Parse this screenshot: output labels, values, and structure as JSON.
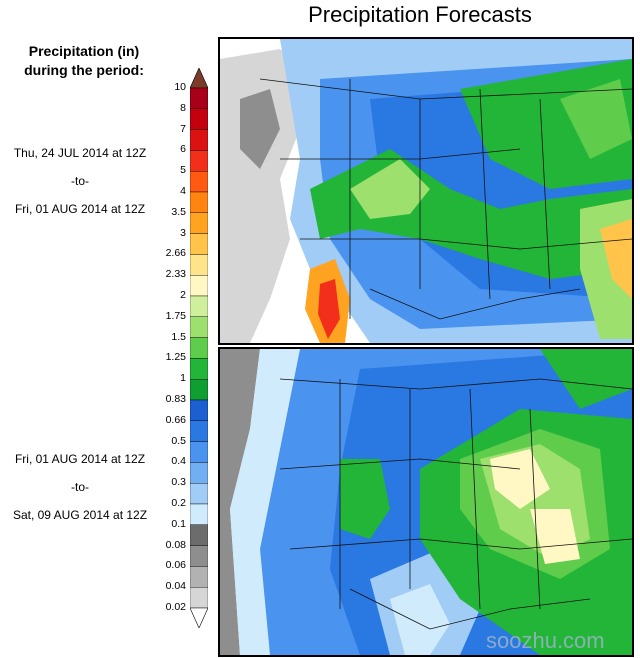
{
  "title": "Precipitation Forecasts",
  "legend": {
    "title_line1": "Precipitation (in)",
    "title_line2": "during the period:",
    "levels": [
      {
        "label": "10",
        "color": "#7b3a2a"
      },
      {
        "label": "8",
        "color": "#a8001a"
      },
      {
        "label": "7",
        "color": "#c40010"
      },
      {
        "label": "6",
        "color": "#dc1111"
      },
      {
        "label": "5",
        "color": "#f22f1a"
      },
      {
        "label": "4",
        "color": "#ff5a12"
      },
      {
        "label": "3.5",
        "color": "#ff8410"
      },
      {
        "label": "3",
        "color": "#ffa320"
      },
      {
        "label": "2.66",
        "color": "#ffc449"
      },
      {
        "label": "2.33",
        "color": "#ffe48a"
      },
      {
        "label": "2",
        "color": "#fff8c4"
      },
      {
        "label": "1.75",
        "color": "#cfef9c"
      },
      {
        "label": "1.5",
        "color": "#9ee06e"
      },
      {
        "label": "1.25",
        "color": "#5fcc4c"
      },
      {
        "label": "1",
        "color": "#22b538"
      },
      {
        "label": "0.83",
        "color": "#0e9e32"
      },
      {
        "label": "0.66",
        "color": "#1c5fd0"
      },
      {
        "label": "0.5",
        "color": "#2a78e2"
      },
      {
        "label": "0.4",
        "color": "#4a93ee"
      },
      {
        "label": "0.3",
        "color": "#72aef2"
      },
      {
        "label": "0.2",
        "color": "#a0ccf6"
      },
      {
        "label": "0.1",
        "color": "#d0ebfb"
      },
      {
        "label": "0.08",
        "color": "#6c6c6c"
      },
      {
        "label": "0.06",
        "color": "#8e8e8e"
      },
      {
        "label": "0.04",
        "color": "#b2b2b2"
      },
      {
        "label": "0.02",
        "color": "#d6d6d6"
      }
    ]
  },
  "period1": {
    "start": "Thu, 24 JUL 2014 at 12Z",
    "sep": "-to-",
    "end": "Fri, 01 AUG 2014 at 12Z"
  },
  "period2": {
    "start": "Fri, 01 AUG 2014 at 12Z",
    "sep": "-to-",
    "end": "Sat, 09 AUG 2014 at 12Z"
  },
  "watermark": "soozhu.com"
}
